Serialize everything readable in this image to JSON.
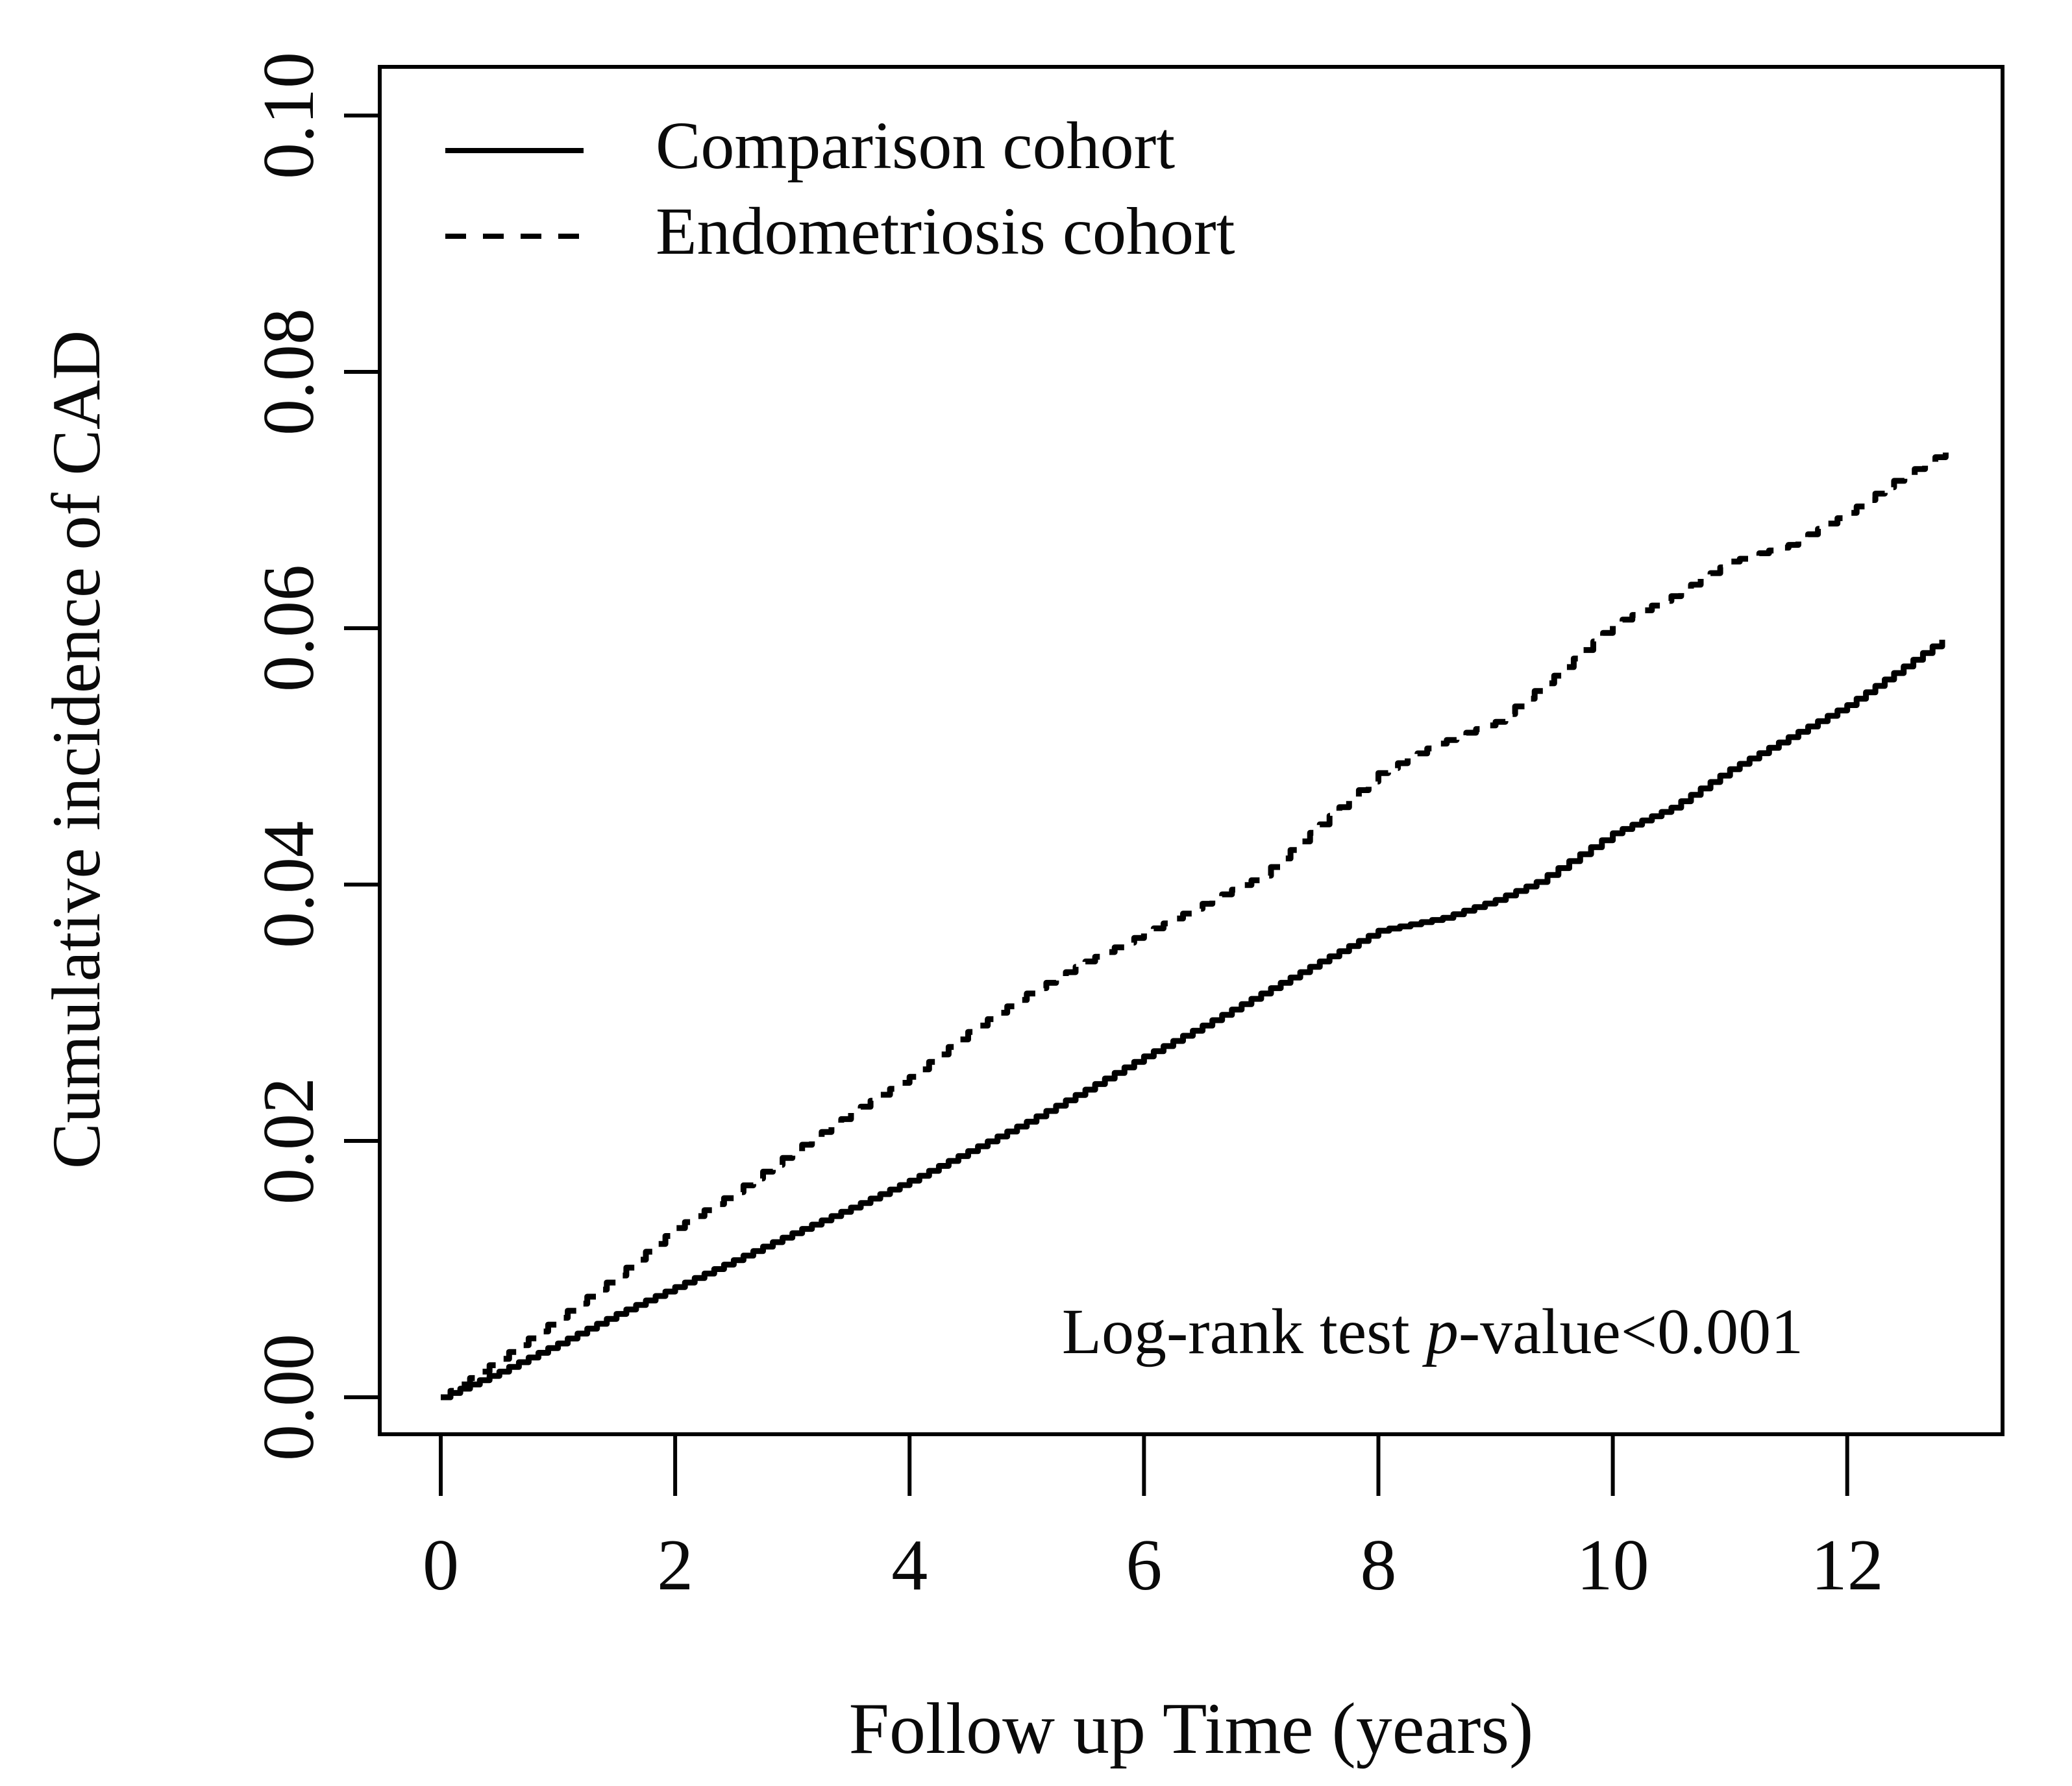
{
  "figure": {
    "background": "#ffffff",
    "ink": "#000000"
  },
  "chart_data": {
    "type": "line",
    "subtype": "kaplan-meier-cumulative-incidence",
    "title": "",
    "xlabel": "Follow up Time (years)",
    "ylabel": "Cumulative incidence of CAD",
    "xlim": [
      -0.52,
      13.3
    ],
    "ylim": [
      -0.003,
      0.104
    ],
    "x_ticks": [
      0,
      2,
      4,
      6,
      8,
      10,
      12
    ],
    "y_ticks": [
      0.0,
      0.02,
      0.04,
      0.06,
      0.08,
      0.1
    ],
    "y_tick_labels": [
      "0.00",
      "0.02",
      "0.04",
      "0.06",
      "0.08",
      "0.10"
    ],
    "grid": false,
    "legend_position": "inside-top-left",
    "annotation": {
      "text": "Log-rank test p-value<0.001",
      "prefix": "Log-rank test ",
      "p": "p",
      "suffix": "-value<0.001"
    },
    "series": [
      {
        "name": "Comparison cohort",
        "style": "solid",
        "color": "#000000",
        "x": [
          0,
          0.5,
          1,
          1.5,
          2,
          2.5,
          3,
          3.5,
          4,
          4.5,
          5,
          5.5,
          6,
          6.5,
          7,
          7.5,
          8,
          8.55,
          9,
          9.35,
          10,
          10.5,
          11,
          11.5,
          12,
          12.4,
          12.81
        ],
        "y": [
          0,
          0.002,
          0.0042,
          0.0065,
          0.0086,
          0.0107,
          0.0128,
          0.0148,
          0.0169,
          0.0192,
          0.0215,
          0.024,
          0.0266,
          0.029,
          0.0315,
          0.034,
          0.0364,
          0.0374,
          0.0388,
          0.0402,
          0.044,
          0.046,
          0.049,
          0.0515,
          0.054,
          0.0565,
          0.0591
        ]
      },
      {
        "name": "Endometriosis cohort",
        "style": "dashed",
        "color": "#000000",
        "x": [
          0,
          0.5,
          1,
          1.5,
          2,
          2.5,
          3,
          3.5,
          4,
          4.5,
          5,
          5.5,
          6,
          6.5,
          7,
          7.5,
          8,
          8.5,
          9,
          9.5,
          10,
          10.5,
          11,
          11.5,
          12,
          12.4,
          12.84
        ],
        "y": [
          0,
          0.003,
          0.0062,
          0.0095,
          0.0132,
          0.016,
          0.0192,
          0.0222,
          0.025,
          0.0285,
          0.0315,
          0.034,
          0.0362,
          0.0385,
          0.0407,
          0.0447,
          0.0487,
          0.051,
          0.0527,
          0.0563,
          0.0603,
          0.0625,
          0.0652,
          0.0665,
          0.069,
          0.0715,
          0.0738
        ]
      }
    ]
  }
}
